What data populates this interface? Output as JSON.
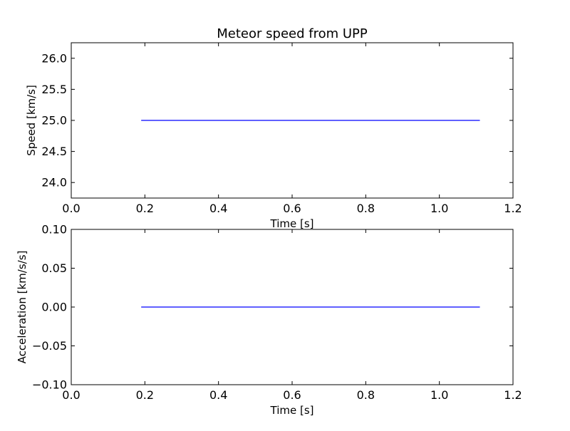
{
  "figure": {
    "title": "Meteor speed from  UPP"
  },
  "chart_data": [
    {
      "type": "line",
      "title": "Meteor speed from  UPP",
      "xlabel": "Time [s]",
      "ylabel": "Speed [km/s]",
      "xlim": [
        0.0,
        1.2
      ],
      "ylim": [
        23.75,
        26.25
      ],
      "xticks": [
        "0.0",
        "0.2",
        "0.4",
        "0.6",
        "0.8",
        "1.0",
        "1.2"
      ],
      "yticks": [
        "24.0",
        "24.5",
        "25.0",
        "25.5",
        "26.0"
      ],
      "grid": false,
      "series": [
        {
          "x": [
            0.19,
            1.11
          ],
          "y": [
            25.0,
            25.0
          ],
          "color": "#0000ff"
        }
      ]
    },
    {
      "type": "line",
      "title": "",
      "xlabel": "Time [s]",
      "ylabel": "Acceleration [km/s/s]",
      "xlim": [
        0.0,
        1.2
      ],
      "ylim": [
        -0.1,
        0.1
      ],
      "xticks": [
        "0.0",
        "0.2",
        "0.4",
        "0.6",
        "0.8",
        "1.0",
        "1.2"
      ],
      "yticks": [
        "−0.10",
        "−0.05",
        "0.00",
        "0.05",
        "0.10"
      ],
      "grid": false,
      "series": [
        {
          "x": [
            0.19,
            1.11
          ],
          "y": [
            0.0,
            0.0
          ],
          "color": "#0000ff"
        }
      ]
    }
  ]
}
